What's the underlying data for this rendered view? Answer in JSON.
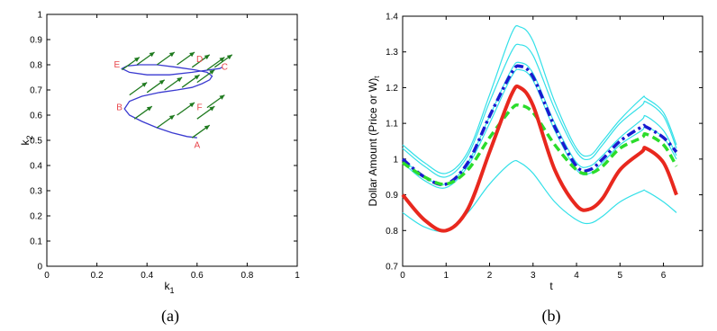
{
  "chart_data": [
    {
      "type": "line",
      "panel_caption": "(a)",
      "xlabel": "k",
      "xlabel_sub": "1",
      "ylabel": "k",
      "ylabel_sub": "2",
      "xlim": [
        0,
        1
      ],
      "ylim": [
        0,
        1
      ],
      "xticks": [
        "0",
        "0.2",
        "0.4",
        "0.6",
        "0.8",
        "1"
      ],
      "yticks": [
        "0",
        "0.1",
        "0.2",
        "0.3",
        "0.4",
        "0.5",
        "0.6",
        "0.7",
        "0.8",
        "0.9",
        "1"
      ],
      "grid": false,
      "curve_color": "#3a3ad0",
      "arrow_color": "#1f7a1f",
      "label_color": "#e8454b",
      "curve": {
        "x": [
          0.6,
          0.56,
          0.5,
          0.44,
          0.38,
          0.33,
          0.31,
          0.33,
          0.38,
          0.45,
          0.52,
          0.58,
          0.62,
          0.65,
          0.66,
          0.64,
          0.59,
          0.52,
          0.44,
          0.37,
          0.32,
          0.3,
          0.33,
          0.4,
          0.49,
          0.58,
          0.65,
          0.69,
          0.7
        ],
        "y": [
          0.51,
          0.515,
          0.53,
          0.55,
          0.575,
          0.6,
          0.625,
          0.655,
          0.675,
          0.69,
          0.7,
          0.71,
          0.725,
          0.74,
          0.755,
          0.77,
          0.78,
          0.79,
          0.8,
          0.8,
          0.795,
          0.785,
          0.77,
          0.76,
          0.76,
          0.77,
          0.78,
          0.785,
          0.79
        ]
      },
      "points": [
        {
          "name": "A",
          "x": 0.6,
          "y": 0.47
        },
        {
          "name": "B",
          "x": 0.29,
          "y": 0.62
        },
        {
          "name": "C",
          "x": 0.71,
          "y": 0.78
        },
        {
          "name": "D",
          "x": 0.61,
          "y": 0.81
        },
        {
          "name": "E",
          "x": 0.28,
          "y": 0.79
        },
        {
          "name": "F",
          "x": 0.61,
          "y": 0.62
        }
      ],
      "arrows": [
        {
          "x": 0.3,
          "y": 0.78,
          "dx": 0.07,
          "dy": 0.05
        },
        {
          "x": 0.36,
          "y": 0.8,
          "dx": 0.07,
          "dy": 0.05
        },
        {
          "x": 0.44,
          "y": 0.8,
          "dx": 0.07,
          "dy": 0.05
        },
        {
          "x": 0.52,
          "y": 0.8,
          "dx": 0.07,
          "dy": 0.05
        },
        {
          "x": 0.58,
          "y": 0.79,
          "dx": 0.07,
          "dy": 0.05
        },
        {
          "x": 0.64,
          "y": 0.78,
          "dx": 0.07,
          "dy": 0.05
        },
        {
          "x": 0.67,
          "y": 0.79,
          "dx": 0.07,
          "dy": 0.05
        },
        {
          "x": 0.33,
          "y": 0.68,
          "dx": 0.07,
          "dy": 0.05
        },
        {
          "x": 0.4,
          "y": 0.69,
          "dx": 0.07,
          "dy": 0.05
        },
        {
          "x": 0.47,
          "y": 0.7,
          "dx": 0.07,
          "dy": 0.05
        },
        {
          "x": 0.54,
          "y": 0.71,
          "dx": 0.07,
          "dy": 0.05
        },
        {
          "x": 0.6,
          "y": 0.73,
          "dx": 0.07,
          "dy": 0.05
        },
        {
          "x": 0.35,
          "y": 0.585,
          "dx": 0.07,
          "dy": 0.05
        },
        {
          "x": 0.44,
          "y": 0.55,
          "dx": 0.07,
          "dy": 0.05
        },
        {
          "x": 0.52,
          "y": 0.6,
          "dx": 0.07,
          "dy": 0.05
        },
        {
          "x": 0.6,
          "y": 0.585,
          "dx": 0.07,
          "dy": 0.05
        },
        {
          "x": 0.64,
          "y": 0.63,
          "dx": 0.07,
          "dy": 0.05
        },
        {
          "x": 0.58,
          "y": 0.51,
          "dx": 0.07,
          "dy": 0.05
        }
      ]
    },
    {
      "type": "line",
      "panel_caption": "(b)",
      "xlabel": "t",
      "ylabel": "Dollar Amount (Price or W)",
      "ylabel_sub": "t",
      "xlim": [
        0,
        6.9
      ],
      "ylim": [
        0.7,
        1.4
      ],
      "xticks": [
        "0",
        "1",
        "2",
        "3",
        "4",
        "5",
        "6"
      ],
      "yticks": [
        "0.7",
        "0.8",
        "0.9",
        "1",
        "1.1",
        "1.2",
        "1.3",
        "1.4"
      ],
      "grid": false,
      "x": [
        0,
        0.5,
        1.0,
        1.5,
        2.0,
        2.5,
        2.7,
        3.0,
        3.5,
        4.0,
        4.3,
        4.6,
        5.0,
        5.5,
        5.6,
        6.0,
        6.3
      ],
      "series": [
        {
          "color": "#33e0e8",
          "style": "solid",
          "width": 1.2,
          "values": [
            1.04,
            0.99,
            0.96,
            1.02,
            1.18,
            1.35,
            1.37,
            1.33,
            1.16,
            1.03,
            1.01,
            1.05,
            1.11,
            1.17,
            1.17,
            1.13,
            1.04
          ]
        },
        {
          "color": "#33e0e8",
          "style": "solid",
          "width": 1.2,
          "values": [
            1.03,
            0.98,
            0.95,
            1.01,
            1.16,
            1.3,
            1.32,
            1.29,
            1.14,
            1.02,
            1.0,
            1.04,
            1.1,
            1.15,
            1.16,
            1.12,
            1.03
          ]
        },
        {
          "color": "#33e0e8",
          "style": "solid",
          "width": 1.2,
          "values": [
            1.0,
            0.95,
            0.93,
            0.99,
            1.12,
            1.25,
            1.27,
            1.24,
            1.1,
            0.99,
            0.98,
            1.01,
            1.06,
            1.11,
            1.12,
            1.08,
            1.01
          ]
        },
        {
          "color": "#33e0e8",
          "style": "solid",
          "width": 1.2,
          "values": [
            0.99,
            0.94,
            0.92,
            0.98,
            1.1,
            1.23,
            1.25,
            1.22,
            1.08,
            0.97,
            0.96,
            0.99,
            1.04,
            1.08,
            1.09,
            1.06,
            1.0
          ]
        },
        {
          "color": "#33e0e8",
          "style": "solid",
          "width": 1.2,
          "values": [
            0.85,
            0.81,
            0.8,
            0.85,
            0.93,
            0.99,
            0.99,
            0.96,
            0.88,
            0.83,
            0.82,
            0.84,
            0.88,
            0.91,
            0.91,
            0.88,
            0.85
          ]
        },
        {
          "color": "#1a1ad0",
          "style": "dashdot",
          "width": 3.5,
          "values": [
            1.0,
            0.95,
            0.93,
            0.99,
            1.12,
            1.24,
            1.26,
            1.23,
            1.09,
            0.98,
            0.97,
            1.0,
            1.05,
            1.09,
            1.09,
            1.06,
            1.02
          ]
        },
        {
          "color": "#2bdc2b",
          "style": "dashed",
          "width": 3.5,
          "values": [
            0.99,
            0.95,
            0.93,
            0.97,
            1.06,
            1.14,
            1.15,
            1.13,
            1.04,
            0.97,
            0.96,
            0.98,
            1.03,
            1.06,
            1.07,
            1.04,
            0.98
          ]
        },
        {
          "color": "#e8281e",
          "style": "solid",
          "width": 4,
          "values": [
            0.9,
            0.83,
            0.8,
            0.86,
            1.02,
            1.18,
            1.2,
            1.15,
            0.97,
            0.87,
            0.86,
            0.89,
            0.97,
            1.02,
            1.03,
            0.99,
            0.9
          ]
        }
      ]
    }
  ]
}
